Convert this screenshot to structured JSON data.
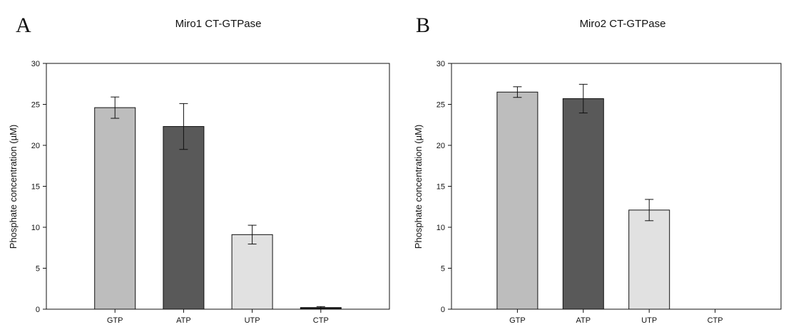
{
  "panels": [
    {
      "letter": "A",
      "title": "Miro1 CT-GTPase"
    },
    {
      "letter": "B",
      "title": "Miro2 CT-GTPase"
    }
  ],
  "colors": {
    "GTP": "#bdbdbd",
    "ATP": "#595959",
    "UTP": "#e1e1e1",
    "CTP": "#1a1a1a",
    "axis": "#111111"
  },
  "chart_data": [
    {
      "type": "bar",
      "title": "Miro1 CT-GTPase",
      "xlabel": "",
      "ylabel": "Phosphate concentration (µM)",
      "categories": [
        "GTP",
        "ATP",
        "UTP",
        "CTP"
      ],
      "values": [
        24.6,
        22.3,
        9.1,
        0.2
      ],
      "errors": [
        1.3,
        2.8,
        1.15,
        0.12
      ],
      "ylim": [
        0,
        30
      ],
      "yticks": [
        0,
        5,
        10,
        15,
        20,
        25,
        30
      ],
      "grid": false
    },
    {
      "type": "bar",
      "title": "Miro2 CT-GTPase",
      "xlabel": "",
      "ylabel": "Phosphate concentration (µM)",
      "categories": [
        "GTP",
        "ATP",
        "UTP",
        "CTP"
      ],
      "values": [
        26.5,
        25.7,
        12.1,
        0.0
      ],
      "errors": [
        0.65,
        1.75,
        1.3,
        0.0
      ],
      "ylim": [
        0,
        30
      ],
      "yticks": [
        0,
        5,
        10,
        15,
        20,
        25,
        30
      ],
      "grid": false
    }
  ]
}
